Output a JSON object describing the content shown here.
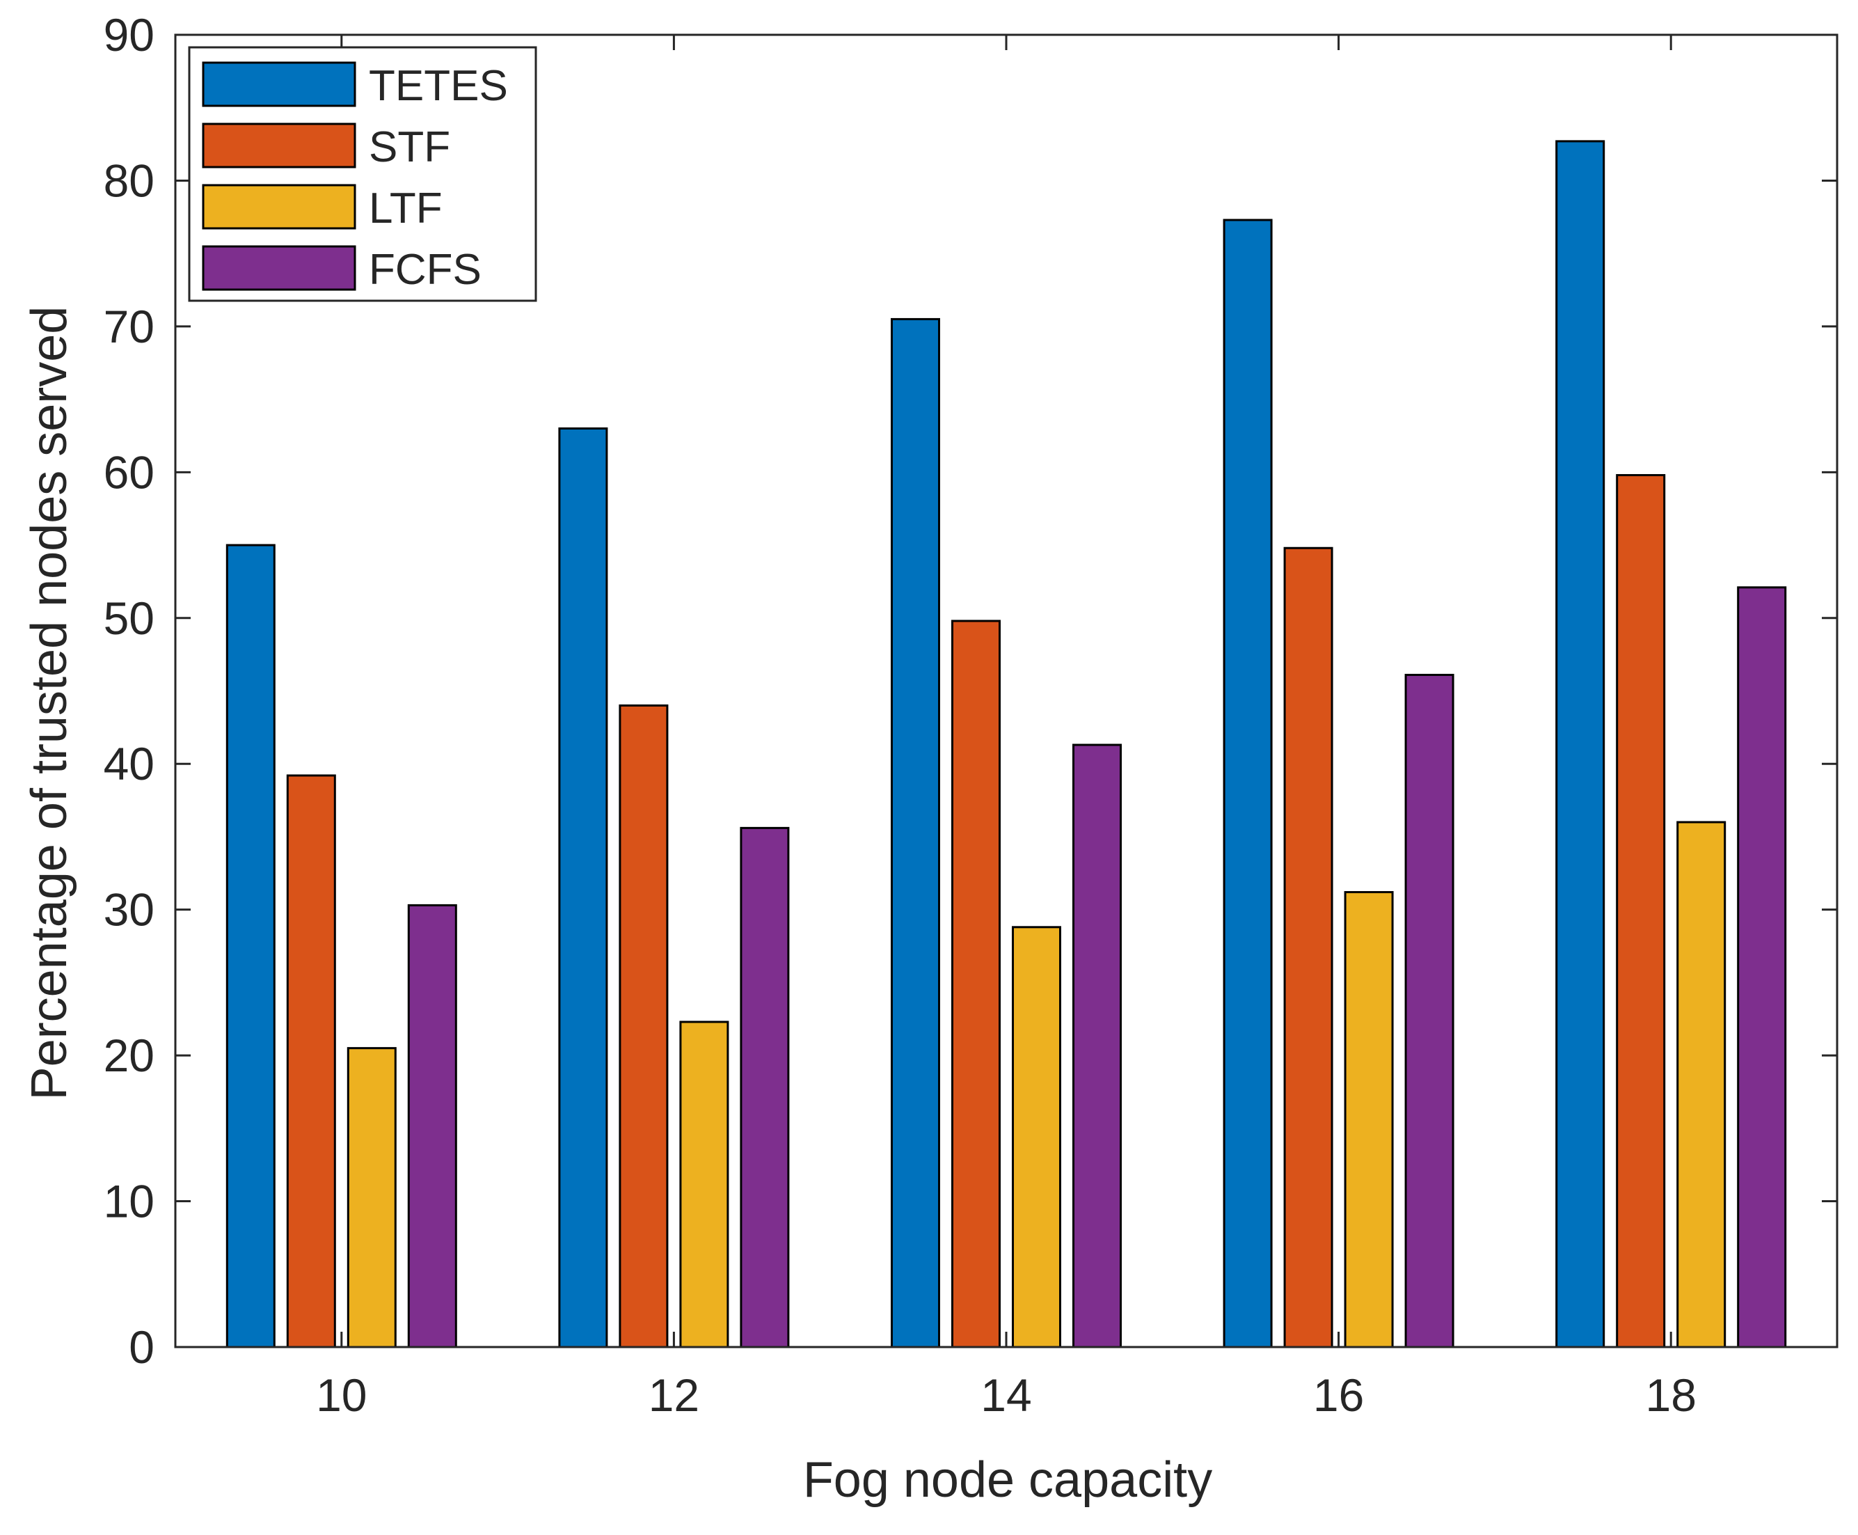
{
  "chart_data": {
    "type": "bar",
    "title": "",
    "xlabel": "Fog node capacity",
    "ylabel": "Percentage of trusted nodes served",
    "categories": [
      "10",
      "12",
      "14",
      "16",
      "18"
    ],
    "ylim": [
      0,
      90
    ],
    "yticks": [
      "0",
      "10",
      "20",
      "30",
      "40",
      "50",
      "60",
      "70",
      "80",
      "90"
    ],
    "grid": false,
    "legend_position": "top-left",
    "series": [
      {
        "name": "TETES",
        "color": "#0072BD",
        "values": [
          55,
          63,
          70.5,
          77.3,
          82.7
        ]
      },
      {
        "name": "STF",
        "color": "#D95319",
        "values": [
          39.2,
          44,
          49.8,
          54.8,
          59.8
        ]
      },
      {
        "name": "LTF",
        "color": "#EDB120",
        "values": [
          20.5,
          22.3,
          28.8,
          31.2,
          36
        ]
      },
      {
        "name": "FCFS",
        "color": "#7E2F8E",
        "values": [
          30.3,
          35.6,
          41.3,
          46.1,
          52.1
        ]
      }
    ]
  }
}
